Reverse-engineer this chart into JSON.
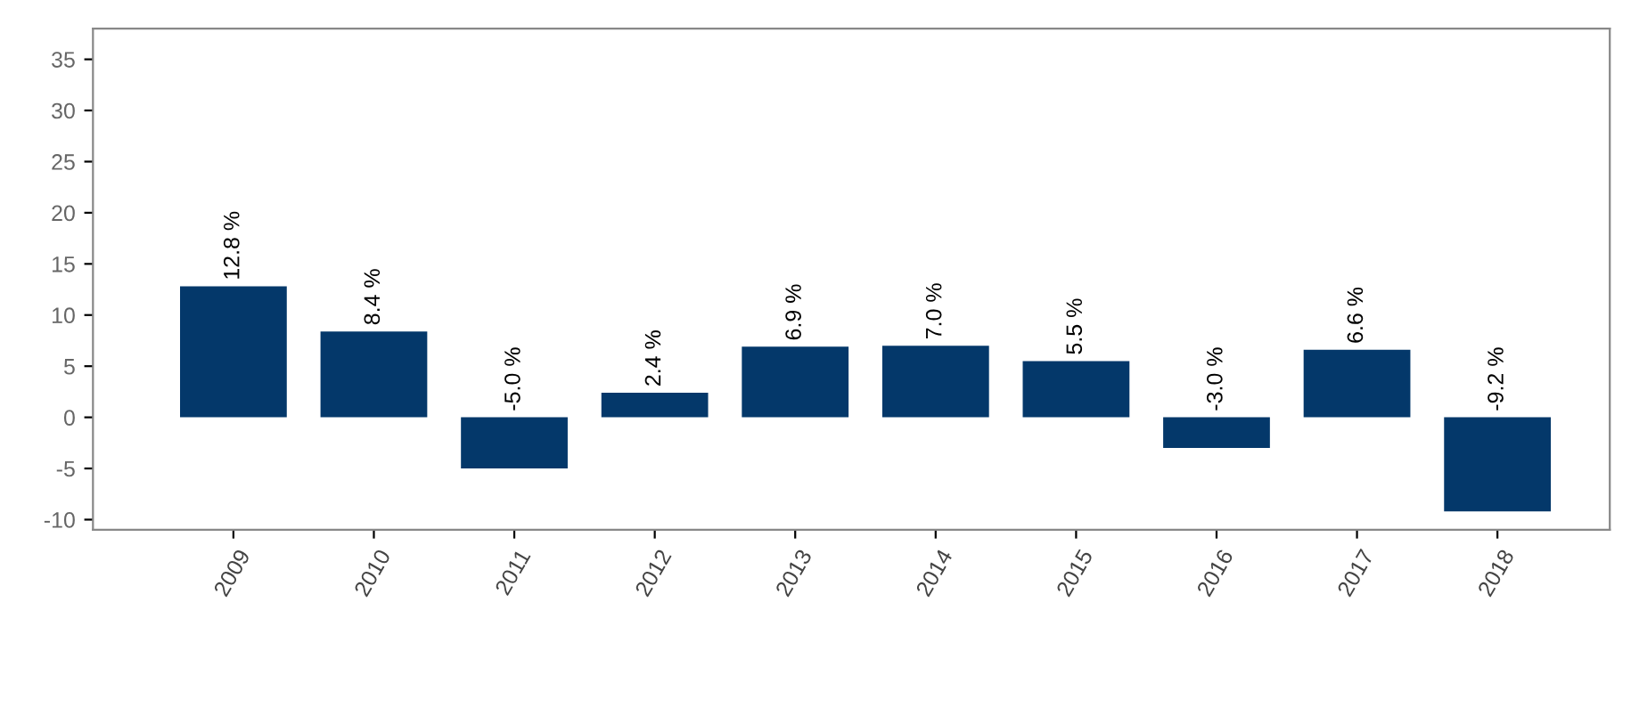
{
  "chart_data": {
    "type": "bar",
    "categories": [
      "2009",
      "2010",
      "2011",
      "2012",
      "2013",
      "2014",
      "2015",
      "2016",
      "2017",
      "2018"
    ],
    "series": [
      {
        "color": "#04386a",
        "values": [
          12.8,
          8.4,
          -5.0,
          2.4,
          6.9,
          7.0,
          5.5,
          -3.0,
          6.6,
          -9.2
        ],
        "value_labels": [
          "12.8 %",
          "8.4 %",
          "-5.0 %",
          "2.4 %",
          "6.9 %",
          "7.0 %",
          "5.5 %",
          "-3.0 %",
          "6.6 %",
          "-9.2 %"
        ]
      }
    ],
    "ylim": [
      -11,
      38
    ],
    "yticks": [
      -10,
      -5,
      0,
      5,
      10,
      15,
      20,
      25,
      30,
      35
    ],
    "grid": false,
    "legend": false
  }
}
